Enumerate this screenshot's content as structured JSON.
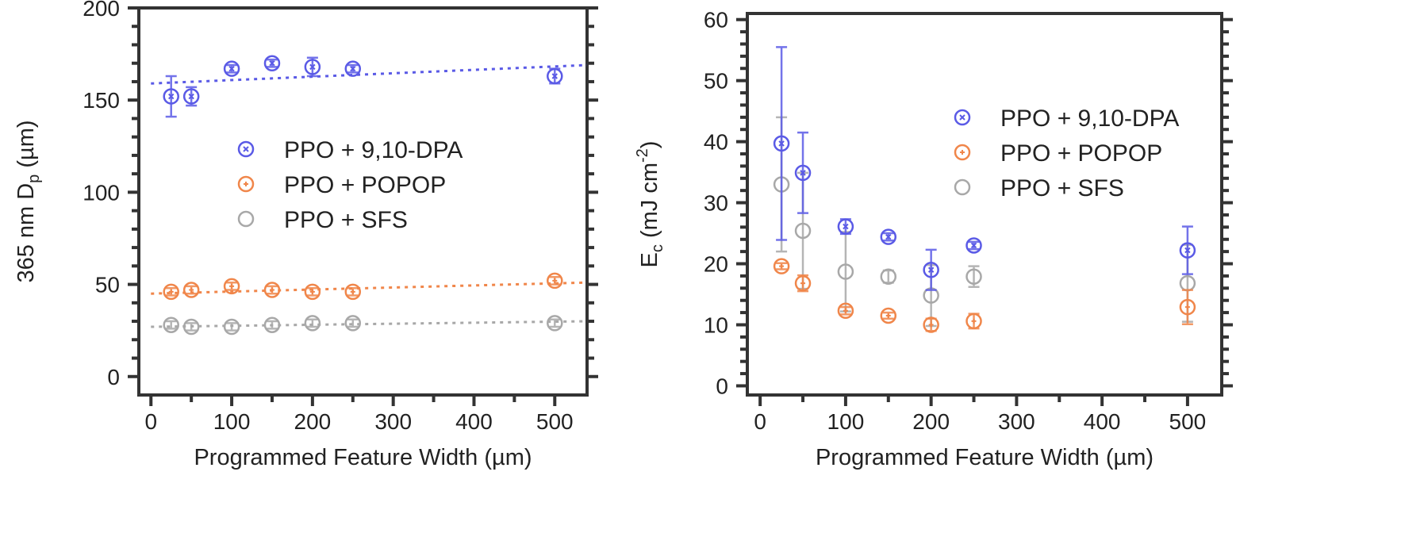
{
  "colors": {
    "blue": "#5a5ae6",
    "orange": "#f0864a",
    "gray": "#a8a8a8",
    "axis": "#333333"
  },
  "chart_data": [
    {
      "type": "scatter",
      "title": "",
      "xlabel": "Programmed Feature Width (µm)",
      "ylabel_parts": [
        "365 nm D",
        "p",
        " (µm)"
      ],
      "xlim": [
        -15,
        540
      ],
      "ylim": [
        -10,
        200
      ],
      "xticks": [
        0,
        100,
        200,
        300,
        400,
        500
      ],
      "yticks": [
        0,
        50,
        100,
        150,
        200
      ],
      "grid": false,
      "legend_placement": "center",
      "x": [
        25,
        50,
        100,
        150,
        200,
        250,
        500
      ],
      "series": [
        {
          "name": "PPO + 9,10-DPA",
          "color": "blue",
          "marker": "circle-x",
          "values": [
            152,
            152,
            167,
            170,
            168,
            167,
            163
          ],
          "err": [
            11,
            5,
            2,
            2,
            5,
            2,
            4
          ],
          "fit": [
            [
              0,
              159
            ],
            [
              540,
              169
            ]
          ]
        },
        {
          "name": "PPO + POPOP",
          "color": "orange",
          "marker": "circle-plus",
          "values": [
            46,
            47,
            49,
            47,
            46,
            46,
            52
          ],
          "err": [
            2,
            2,
            2,
            2,
            2,
            2,
            2
          ],
          "fit": [
            [
              0,
              45
            ],
            [
              540,
              51
            ]
          ]
        },
        {
          "name": "PPO + SFS",
          "color": "gray",
          "marker": "circle",
          "values": [
            28,
            27,
            27,
            28,
            29,
            29,
            29
          ],
          "err": [
            2,
            2,
            2,
            2,
            2,
            2,
            2
          ],
          "fit": [
            [
              0,
              27
            ],
            [
              540,
              30
            ]
          ]
        }
      ]
    },
    {
      "type": "scatter",
      "title": "",
      "xlabel": "Programmed Feature Width (µm)",
      "ylabel_parts": [
        "E",
        "c",
        " (mJ cm",
        "-2",
        ")"
      ],
      "xlim": [
        -15,
        540
      ],
      "ylim": [
        -1.5,
        61
      ],
      "xticks": [
        0,
        100,
        200,
        300,
        400,
        500
      ],
      "yticks": [
        0,
        10,
        20,
        30,
        40,
        50,
        60
      ],
      "grid": false,
      "legend_placement": "top-right",
      "x": [
        25,
        50,
        100,
        150,
        200,
        250,
        500
      ],
      "series": [
        {
          "name": "PPO + 9,10-DPA",
          "color": "blue",
          "marker": "circle-x",
          "values": [
            39.7,
            34.9,
            26.1,
            24.4,
            19.0,
            23.0,
            22.2
          ],
          "err": [
            15.8,
            6.6,
            1.2,
            0.6,
            3.3,
            0.6,
            3.9
          ]
        },
        {
          "name": "PPO + POPOP",
          "color": "orange",
          "marker": "circle-plus",
          "values": [
            19.6,
            16.8,
            12.3,
            11.5,
            10.0,
            10.6,
            12.9
          ],
          "err": [
            0.5,
            1.3,
            0.6,
            0.5,
            1.0,
            1.2,
            2.8
          ]
        },
        {
          "name": "PPO + SFS",
          "color": "gray",
          "marker": "circle",
          "values": [
            33.0,
            25.4,
            18.7,
            17.9,
            14.8,
            17.9,
            16.8
          ],
          "err": [
            11.0,
            9.5,
            6.5,
            1.0,
            5.0,
            1.7,
            6.3
          ]
        }
      ]
    }
  ]
}
